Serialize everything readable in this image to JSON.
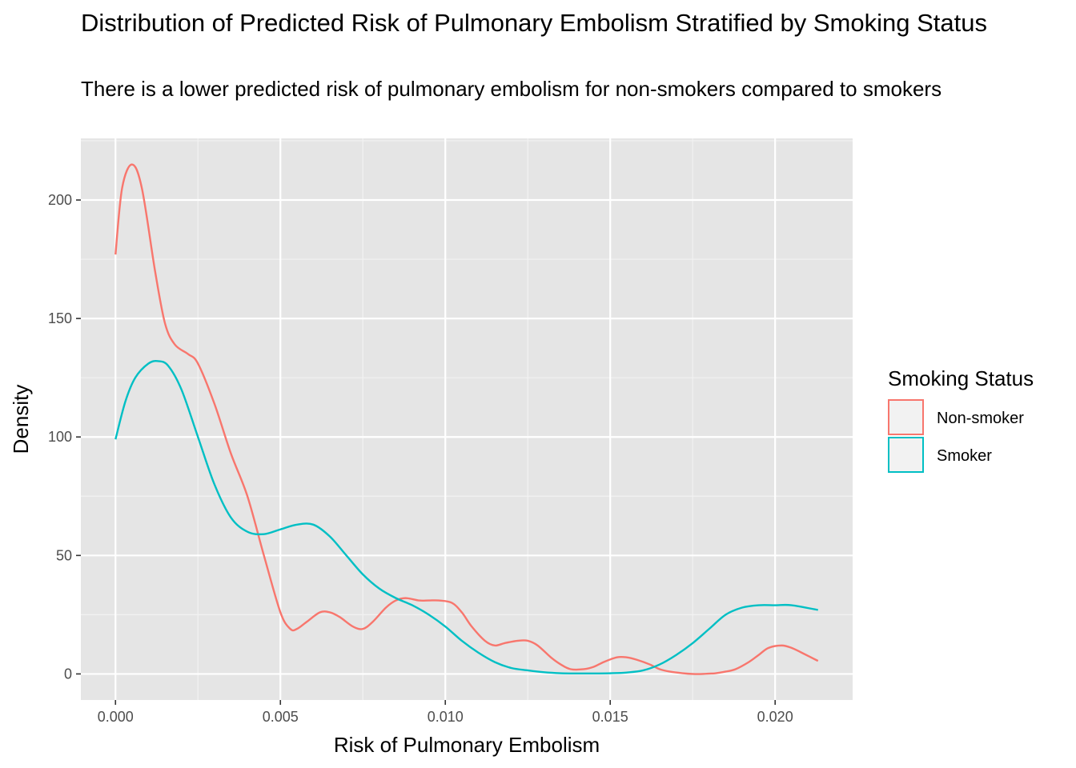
{
  "chart_data": {
    "type": "line",
    "title": "Distribution of Predicted Risk of Pulmonary Embolism Stratified by Smoking Status",
    "subtitle": "There is a lower predicted risk of pulmonary embolism for non-smokers compared to smokers",
    "xlabel": "Risk of Pulmonary Embolism",
    "ylabel": "Density",
    "xlim": [
      -0.00105,
      0.02235
    ],
    "ylim": [
      -11,
      226
    ],
    "x_ticks": [
      0.0,
      0.005,
      0.01,
      0.015,
      0.02
    ],
    "x_tick_labels": [
      "0.000",
      "0.005",
      "0.010",
      "0.015",
      "0.020"
    ],
    "y_ticks": [
      0,
      50,
      100,
      150,
      200
    ],
    "y_tick_labels": [
      "0",
      "50",
      "100",
      "150",
      "200"
    ],
    "grid": true,
    "background": "#e5e5e5",
    "legend": {
      "title": "Smoking Status",
      "position": "right",
      "entries": [
        "Non-smoker",
        "Smoker"
      ]
    },
    "series": [
      {
        "name": "Non-smoker",
        "color": "#f8766d",
        "x": [
          0.0,
          0.0002,
          0.0005,
          0.0008,
          0.0012,
          0.0015,
          0.0018,
          0.0022,
          0.0025,
          0.003,
          0.0035,
          0.004,
          0.0045,
          0.005,
          0.0053,
          0.0055,
          0.0058,
          0.0062,
          0.0065,
          0.0068,
          0.0072,
          0.0075,
          0.0078,
          0.0082,
          0.0085,
          0.0088,
          0.0092,
          0.0095,
          0.0098,
          0.0102,
          0.0105,
          0.0108,
          0.0112,
          0.0115,
          0.0118,
          0.0122,
          0.0125,
          0.0128,
          0.0132,
          0.0135,
          0.0138,
          0.0142,
          0.0145,
          0.0148,
          0.0152,
          0.0155,
          0.0158,
          0.0162,
          0.0165,
          0.0168,
          0.0172,
          0.0175,
          0.0178,
          0.0182,
          0.0185,
          0.0188,
          0.0192,
          0.0195,
          0.0198,
          0.0202,
          0.0205,
          0.0208,
          0.0213
        ],
        "y": [
          177,
          205,
          215,
          205,
          170,
          148,
          139,
          135,
          131,
          114,
          93,
          75,
          50,
          26,
          19,
          19,
          22,
          26,
          26,
          24,
          20,
          19,
          22,
          28,
          31,
          32,
          31,
          31,
          31,
          30,
          26,
          20,
          14,
          12,
          13,
          14,
          14,
          12,
          7,
          4,
          2,
          2,
          3,
          5,
          7,
          7,
          6,
          4,
          2,
          1,
          0.3,
          0,
          0,
          0.3,
          1,
          2,
          5,
          8,
          11,
          12,
          11,
          9,
          5.5
        ]
      },
      {
        "name": "Smoker",
        "color": "#00bfc4",
        "x": [
          0.0,
          0.0003,
          0.0006,
          0.001,
          0.0013,
          0.0016,
          0.002,
          0.0025,
          0.003,
          0.0035,
          0.004,
          0.0045,
          0.005,
          0.0055,
          0.006,
          0.0065,
          0.007,
          0.0075,
          0.008,
          0.0085,
          0.009,
          0.0095,
          0.01,
          0.0105,
          0.011,
          0.0115,
          0.012,
          0.0125,
          0.013,
          0.0135,
          0.014,
          0.0145,
          0.015,
          0.0155,
          0.016,
          0.0165,
          0.017,
          0.0175,
          0.018,
          0.0185,
          0.019,
          0.0195,
          0.02,
          0.0205,
          0.0213
        ],
        "y": [
          99,
          115,
          125,
          131,
          132,
          130,
          120,
          100,
          80,
          66,
          60,
          59,
          61,
          63,
          63,
          58,
          50,
          42,
          36,
          32,
          29,
          25,
          20,
          14,
          9,
          5,
          2.5,
          1.5,
          0.7,
          0.3,
          0.2,
          0.2,
          0.3,
          0.6,
          1.5,
          4,
          8,
          13,
          19,
          25,
          28,
          29,
          29,
          29,
          27
        ]
      }
    ]
  }
}
